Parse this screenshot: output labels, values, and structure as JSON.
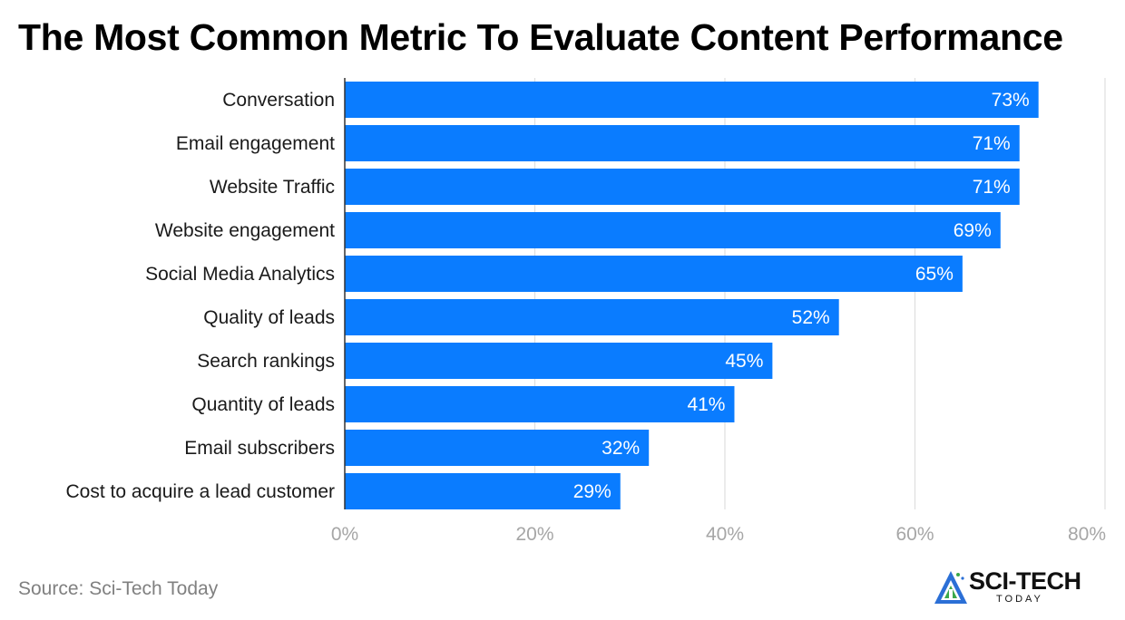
{
  "chart_data": {
    "type": "bar",
    "orientation": "horizontal",
    "title": "The Most Common Metric To Evaluate Content Performance",
    "categories": [
      "Conversation",
      "Email engagement",
      "Website Traffic",
      "Website engagement",
      "Social Media Analytics",
      "Quality of leads",
      "Search rankings",
      "Quantity of leads",
      "Email subscribers",
      "Cost to acquire a lead customer"
    ],
    "values": [
      73,
      71,
      71,
      69,
      65,
      52,
      45,
      41,
      32,
      29
    ],
    "data_labels": [
      "73%",
      "71%",
      "71%",
      "69%",
      "65%",
      "52%",
      "45%",
      "41%",
      "32%",
      "29%"
    ],
    "xlim": [
      0,
      80
    ],
    "x_ticks": [
      0,
      20,
      40,
      60,
      80
    ],
    "x_tick_labels": [
      "0%",
      "20%",
      "40%",
      "60%",
      "80%"
    ],
    "xlabel": "",
    "ylabel": "",
    "grid": true,
    "bar_color": "#0a7cff"
  },
  "source": "Source: Sci-Tech Today",
  "logo": {
    "name": "SCI-TECH",
    "subtitle": "TODAY"
  }
}
